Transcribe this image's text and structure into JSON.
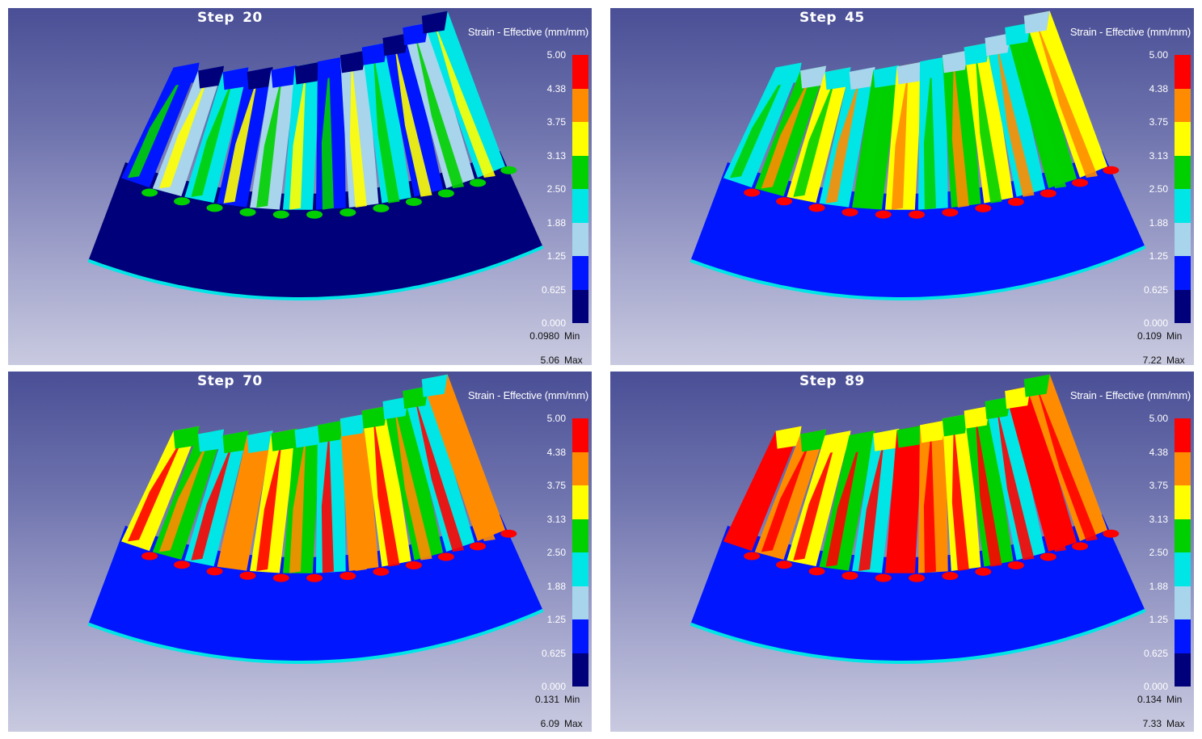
{
  "legend": {
    "label": "Strain - Effective (mm/mm)",
    "ticks": [
      "5.00",
      "4.38",
      "3.75",
      "3.13",
      "2.50",
      "1.88",
      "1.25",
      "0.625",
      "0.000"
    ],
    "colors": [
      "#ff0000",
      "#ff8c00",
      "#ffff00",
      "#00d000",
      "#00e6e6",
      "#a8d4ec",
      "#0016ff",
      "#00007a"
    ],
    "min_label": "Min",
    "max_label": "Max"
  },
  "panels": [
    {
      "step_word": "Step",
      "step": "20",
      "min": "0.0980",
      "max": "5.06"
    },
    {
      "step_word": "Step",
      "step": "45",
      "min": "0.109",
      "max": "7.22"
    },
    {
      "step_word": "Step",
      "step": "70",
      "min": "0.131",
      "max": "6.09"
    },
    {
      "step_word": "Step",
      "step": "89",
      "min": "0.134",
      "max": "7.33"
    }
  ]
}
